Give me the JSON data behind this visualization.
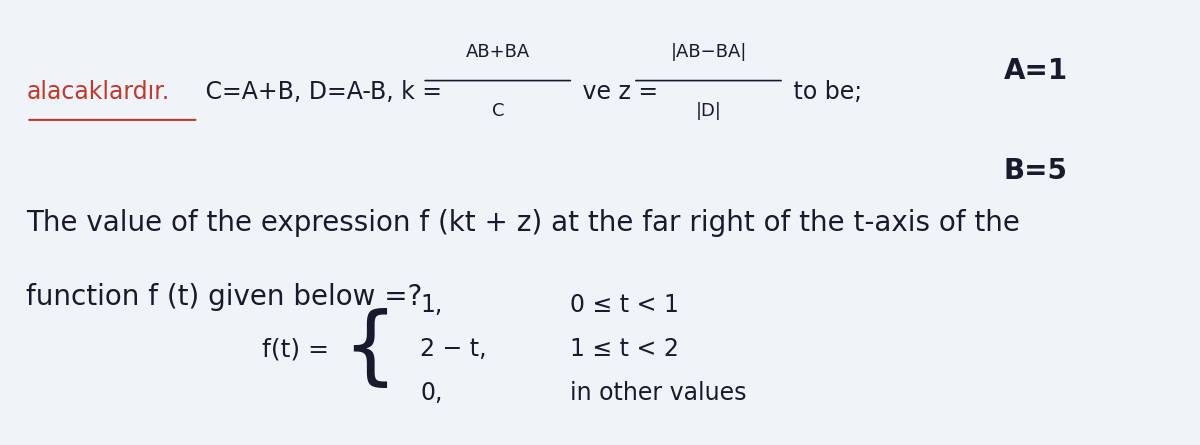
{
  "bg_color": "#f0f4f8",
  "text_color": "#1a1a2e",
  "red_color": "#c0392b",
  "fig_width": 12.0,
  "fig_height": 4.45,
  "line1_underlined": "alacaklardır.",
  "line1_rest": " C=A+B, D=A-B, k = ",
  "line1_numerator1": "AB+BA",
  "line1_denominator1": "C",
  "line1_ve": " ve z = ",
  "line1_numerator2": "|AB−BA|",
  "line1_denominator2": "|D|",
  "line1_tobe": " to be;",
  "top_right_A": "A=1",
  "top_right_B": "B=5",
  "line2": "The value of the expression f (kt + z) at the far right of the t-axis of the",
  "line3": "function f (t) given below =?",
  "func_label": "f(t) = ",
  "func_row1_val": "1,",
  "func_row1_cond": "0 ≤ t < 1",
  "func_row2_val": "2 − t,",
  "func_row2_cond": "1 ≤ t < 2",
  "func_row3_val": "0,",
  "func_row3_cond": "in other values"
}
